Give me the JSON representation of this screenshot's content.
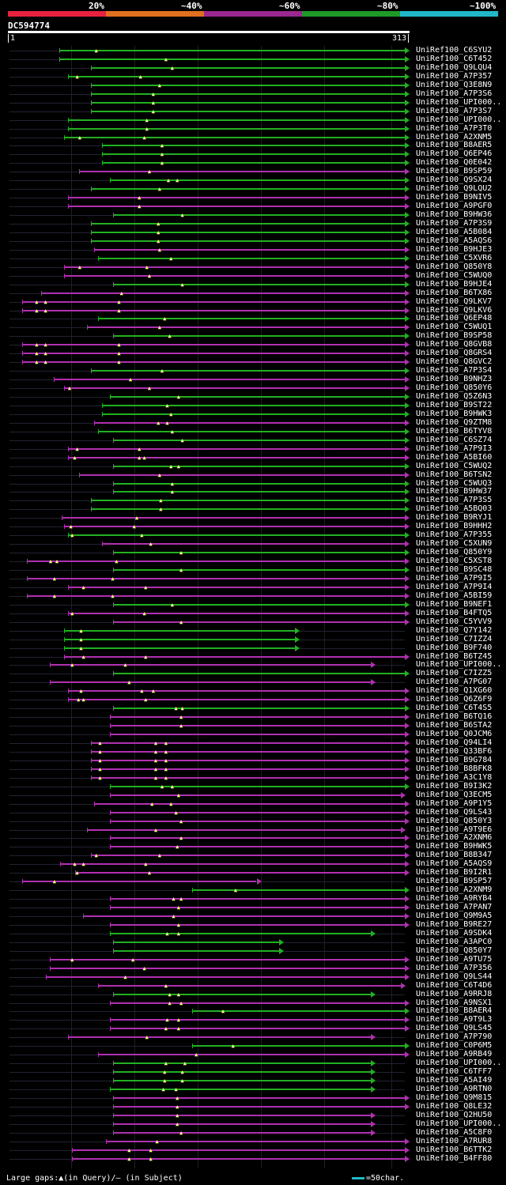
{
  "legend": {
    "labels": [
      "20%",
      "~40%",
      "~60%",
      "~80%",
      "~100%"
    ],
    "colors": [
      "#e8213f",
      "#e07020",
      "#9a2890",
      "#1e9a28",
      "#20b8c8"
    ]
  },
  "query": {
    "id": "DC594774",
    "start": "1",
    "end": "313"
  },
  "hits": [
    {
      "name": "UniRef100_C6SYU2",
      "start": 40,
      "end": 313,
      "color": "green",
      "gaps": [
        70
      ]
    },
    {
      "name": "UniRef100_C6T452",
      "start": 40,
      "end": 313,
      "color": "green",
      "gaps": [
        125
      ]
    },
    {
      "name": "UniRef100_Q9LQU4",
      "start": 65,
      "end": 313,
      "color": "green",
      "gaps": [
        130
      ]
    },
    {
      "name": "UniRef100_A7P357",
      "start": 47,
      "end": 313,
      "color": "green",
      "gaps": [
        55,
        105
      ]
    },
    {
      "name": "UniRef100_Q3E8N9",
      "start": 65,
      "end": 313,
      "color": "green",
      "gaps": [
        120
      ]
    },
    {
      "name": "UniRef100_A7P3S6",
      "start": 65,
      "end": 313,
      "color": "green",
      "gaps": [
        115
      ]
    },
    {
      "name": "UniRef100_UPI000..",
      "start": 65,
      "end": 313,
      "color": "green",
      "gaps": [
        115
      ]
    },
    {
      "name": "UniRef100_A7P3S7",
      "start": 65,
      "end": 313,
      "color": "green",
      "gaps": [
        115
      ]
    },
    {
      "name": "UniRef100_UPI000..",
      "start": 47,
      "end": 313,
      "color": "green",
      "gaps": [
        110
      ]
    },
    {
      "name": "UniRef100_A7P3T0",
      "start": 47,
      "end": 313,
      "color": "green",
      "gaps": [
        110
      ]
    },
    {
      "name": "UniRef100_A2XNM5",
      "start": 44,
      "end": 313,
      "color": "green",
      "gaps": [
        57,
        108
      ]
    },
    {
      "name": "UniRef100_B8AER5",
      "start": 74,
      "end": 313,
      "color": "green",
      "gaps": [
        122
      ]
    },
    {
      "name": "UniRef100_Q6EP46",
      "start": 74,
      "end": 313,
      "color": "green",
      "gaps": [
        122
      ]
    },
    {
      "name": "UniRef100_Q0E042",
      "start": 74,
      "end": 313,
      "color": "green",
      "gaps": [
        122
      ]
    },
    {
      "name": "UniRef100_B9SP59",
      "start": 56,
      "end": 313,
      "color": "magenta",
      "gaps": [
        112
      ]
    },
    {
      "name": "UniRef100_Q9SX24",
      "start": 80,
      "end": 313,
      "color": "green",
      "gaps": [
        127,
        134
      ]
    },
    {
      "name": "UniRef100_Q9LQU2",
      "start": 65,
      "end": 313,
      "color": "green",
      "gaps": [
        120
      ]
    },
    {
      "name": "UniRef100_B9NIV5",
      "start": 47,
      "end": 313,
      "color": "magenta",
      "gaps": [
        104
      ]
    },
    {
      "name": "UniRef100_A9PGF0",
      "start": 47,
      "end": 313,
      "color": "magenta",
      "gaps": [
        104
      ]
    },
    {
      "name": "UniRef100_B9HW36",
      "start": 83,
      "end": 313,
      "color": "green",
      "gaps": [
        138
      ]
    },
    {
      "name": "UniRef100_A7P3S9",
      "start": 65,
      "end": 313,
      "color": "green",
      "gaps": [
        119
      ]
    },
    {
      "name": "UniRef100_A5B084",
      "start": 65,
      "end": 313,
      "color": "green",
      "gaps": [
        119
      ]
    },
    {
      "name": "UniRef100_A5AQS6",
      "start": 65,
      "end": 313,
      "color": "green",
      "gaps": [
        119
      ]
    },
    {
      "name": "UniRef100_B9HJE3",
      "start": 68,
      "end": 313,
      "color": "magenta",
      "gaps": [
        120
      ]
    },
    {
      "name": "UniRef100_C5XVR6",
      "start": 71,
      "end": 313,
      "color": "green",
      "gaps": [
        129
      ]
    },
    {
      "name": "UniRef100_Q850Y8",
      "start": 44,
      "end": 313,
      "color": "magenta",
      "gaps": [
        57,
        110
      ]
    },
    {
      "name": "UniRef100_C5WUQ0",
      "start": 44,
      "end": 313,
      "color": "magenta",
      "gaps": [
        112
      ]
    },
    {
      "name": "UniRef100_B9HJE4",
      "start": 83,
      "end": 313,
      "color": "green",
      "gaps": [
        138
      ]
    },
    {
      "name": "UniRef100_B6TX86",
      "start": 26,
      "end": 313,
      "color": "magenta",
      "gaps": [
        90
      ]
    },
    {
      "name": "UniRef100_Q9LKV7",
      "start": 11,
      "end": 313,
      "color": "magenta",
      "gaps": [
        23,
        30,
        88
      ]
    },
    {
      "name": "UniRef100_Q9LKV6",
      "start": 11,
      "end": 313,
      "color": "magenta",
      "gaps": [
        23,
        30,
        88
      ]
    },
    {
      "name": "UniRef100_Q6EP48",
      "start": 71,
      "end": 313,
      "color": "green",
      "gaps": [
        124
      ]
    },
    {
      "name": "UniRef100_C5WUQ1",
      "start": 62,
      "end": 313,
      "color": "magenta",
      "gaps": [
        120
      ]
    },
    {
      "name": "UniRef100_B9SP58",
      "start": 83,
      "end": 313,
      "color": "green",
      "gaps": [
        128
      ]
    },
    {
      "name": "UniRef100_Q8GVB8",
      "start": 11,
      "end": 313,
      "color": "magenta",
      "gaps": [
        23,
        30,
        88
      ]
    },
    {
      "name": "UniRef100_Q8GRS4",
      "start": 11,
      "end": 313,
      "color": "magenta",
      "gaps": [
        23,
        30,
        88
      ]
    },
    {
      "name": "UniRef100_Q8GVC2",
      "start": 11,
      "end": 313,
      "color": "magenta",
      "gaps": [
        23,
        30,
        88
      ]
    },
    {
      "name": "UniRef100_A7P3S4",
      "start": 65,
      "end": 313,
      "color": "green",
      "gaps": [
        122
      ]
    },
    {
      "name": "UniRef100_B9NHZ3",
      "start": 36,
      "end": 313,
      "color": "magenta",
      "gaps": [
        97
      ]
    },
    {
      "name": "UniRef100_Q850Y6",
      "start": 44,
      "end": 313,
      "color": "magenta",
      "gaps": [
        49,
        112
      ]
    },
    {
      "name": "UniRef100_Q5Z6N3",
      "start": 80,
      "end": 313,
      "color": "green",
      "gaps": [
        135
      ]
    },
    {
      "name": "UniRef100_B9ST22",
      "start": 74,
      "end": 313,
      "color": "green",
      "gaps": [
        126
      ]
    },
    {
      "name": "UniRef100_B9HWK3",
      "start": 74,
      "end": 313,
      "color": "green",
      "gaps": [
        129
      ]
    },
    {
      "name": "UniRef100_Q9ZTM8",
      "start": 68,
      "end": 313,
      "color": "magenta",
      "gaps": [
        119,
        126
      ]
    },
    {
      "name": "UniRef100_B6TYV8",
      "start": 71,
      "end": 313,
      "color": "green",
      "gaps": [
        130
      ]
    },
    {
      "name": "UniRef100_C6SZ74",
      "start": 83,
      "end": 313,
      "color": "green",
      "gaps": [
        138
      ]
    },
    {
      "name": "UniRef100_A7P9I3",
      "start": 47,
      "end": 313,
      "color": "magenta",
      "gaps": [
        55,
        104
      ]
    },
    {
      "name": "UniRef100_A5BI60",
      "start": 47,
      "end": 313,
      "color": "magenta",
      "gaps": [
        53,
        104,
        108
      ]
    },
    {
      "name": "UniRef100_C5WUQ2",
      "start": 83,
      "end": 313,
      "color": "green",
      "gaps": [
        129,
        135
      ]
    },
    {
      "name": "UniRef100_B6TSN2",
      "start": 56,
      "end": 313,
      "color": "magenta",
      "gaps": [
        120
      ]
    },
    {
      "name": "UniRef100_C5WUQ3",
      "start": 83,
      "end": 313,
      "color": "green",
      "gaps": [
        130
      ]
    },
    {
      "name": "UniRef100_B9HW37",
      "start": 83,
      "end": 313,
      "color": "green",
      "gaps": [
        130
      ]
    },
    {
      "name": "UniRef100_A7P3S5",
      "start": 65,
      "end": 313,
      "color": "green",
      "gaps": [
        121
      ]
    },
    {
      "name": "UniRef100_A5BQ03",
      "start": 65,
      "end": 313,
      "color": "green",
      "gaps": [
        121
      ]
    },
    {
      "name": "UniRef100_B9RYJ1",
      "start": 42,
      "end": 313,
      "color": "magenta",
      "gaps": [
        102
      ]
    },
    {
      "name": "UniRef100_B9HHH2",
      "start": 44,
      "end": 313,
      "color": "magenta",
      "gaps": [
        50,
        100
      ]
    },
    {
      "name": "UniRef100_A7P355",
      "start": 47,
      "end": 313,
      "color": "green",
      "gaps": [
        51,
        106
      ]
    },
    {
      "name": "UniRef100_C5XUN9",
      "start": 74,
      "end": 313,
      "color": "magenta",
      "gaps": [
        113
      ]
    },
    {
      "name": "UniRef100_Q850Y9",
      "start": 83,
      "end": 313,
      "color": "green",
      "gaps": [
        137
      ]
    },
    {
      "name": "UniRef100_C5XST8",
      "start": 15,
      "end": 313,
      "color": "magenta",
      "gaps": [
        34,
        39,
        86
      ]
    },
    {
      "name": "UniRef100_B9SC48",
      "start": 83,
      "end": 313,
      "color": "green",
      "gaps": [
        137
      ]
    },
    {
      "name": "UniRef100_A7P9I5",
      "start": 15,
      "end": 313,
      "color": "magenta",
      "gaps": [
        37,
        83
      ]
    },
    {
      "name": "UniRef100_A7P9I4",
      "start": 47,
      "end": 313,
      "color": "magenta",
      "gaps": [
        60,
        109
      ]
    },
    {
      "name": "UniRef100_A5BI59",
      "start": 15,
      "end": 313,
      "color": "magenta",
      "gaps": [
        37,
        83
      ]
    },
    {
      "name": "UniRef100_B9NEF1",
      "start": 83,
      "end": 313,
      "color": "green",
      "gaps": [
        130
      ]
    },
    {
      "name": "UniRef100_B4FTQ5",
      "start": 47,
      "end": 313,
      "color": "magenta",
      "gaps": [
        51,
        108
      ]
    },
    {
      "name": "UniRef100_C5YVV9",
      "start": 83,
      "end": 313,
      "color": "magenta",
      "gaps": [
        137
      ]
    },
    {
      "name": "UniRef100_Q7Y142",
      "start": 44,
      "end": 226,
      "color": "green",
      "gaps": [
        58
      ]
    },
    {
      "name": "UniRef100_C7IZZ4",
      "start": 44,
      "end": 226,
      "color": "green",
      "gaps": [
        58
      ]
    },
    {
      "name": "UniRef100_B9F740",
      "start": 44,
      "end": 226,
      "color": "green",
      "gaps": [
        58
      ]
    },
    {
      "name": "UniRef100_B6TZ45",
      "start": 44,
      "end": 313,
      "color": "magenta",
      "gaps": [
        60,
        109
      ]
    },
    {
      "name": "UniRef100_UPI000..",
      "start": 33,
      "end": 286,
      "color": "magenta",
      "gaps": [
        51,
        93
      ]
    },
    {
      "name": "UniRef100_C7IZZ5",
      "start": 83,
      "end": 313,
      "color": "green",
      "gaps": []
    },
    {
      "name": "UniRef100_A7PG07",
      "start": 33,
      "end": 286,
      "color": "magenta",
      "gaps": [
        96
      ]
    },
    {
      "name": "UniRef100_Q1XG60",
      "start": 47,
      "end": 313,
      "color": "magenta",
      "gaps": [
        58,
        106,
        115
      ]
    },
    {
      "name": "UniRef100_Q6Z6F9",
      "start": 47,
      "end": 313,
      "color": "magenta",
      "gaps": [
        56,
        60,
        109
      ]
    },
    {
      "name": "UniRef100_C6T4S5",
      "start": 83,
      "end": 313,
      "color": "green",
      "gaps": [
        133,
        138
      ]
    },
    {
      "name": "UniRef100_B6TQ16",
      "start": 80,
      "end": 313,
      "color": "magenta",
      "gaps": [
        137
      ]
    },
    {
      "name": "UniRef100_B6STA2",
      "start": 80,
      "end": 313,
      "color": "magenta",
      "gaps": [
        137
      ]
    },
    {
      "name": "UniRef100_Q0JCM6",
      "start": 80,
      "end": 313,
      "color": "magenta",
      "gaps": []
    },
    {
      "name": "UniRef100_Q94LI4",
      "start": 65,
      "end": 313,
      "color": "magenta",
      "gaps": [
        73,
        117,
        125
      ]
    },
    {
      "name": "UniRef100_Q33BF6",
      "start": 65,
      "end": 313,
      "color": "magenta",
      "gaps": [
        73,
        117,
        125
      ]
    },
    {
      "name": "UniRef100_B9G784",
      "start": 65,
      "end": 313,
      "color": "magenta",
      "gaps": [
        73,
        117,
        125
      ]
    },
    {
      "name": "UniRef100_B8BFK8",
      "start": 65,
      "end": 313,
      "color": "magenta",
      "gaps": [
        73,
        117,
        125
      ]
    },
    {
      "name": "UniRef100_A3C1Y8",
      "start": 65,
      "end": 313,
      "color": "magenta",
      "gaps": [
        73,
        117,
        125
      ]
    },
    {
      "name": "UniRef100_B9I3K2",
      "start": 80,
      "end": 313,
      "color": "green",
      "gaps": [
        122,
        130
      ]
    },
    {
      "name": "UniRef100_Q3ECM5",
      "start": 80,
      "end": 310,
      "color": "magenta",
      "gaps": [
        135
      ]
    },
    {
      "name": "UniRef100_A9P1Y5",
      "start": 68,
      "end": 313,
      "color": "magenta",
      "gaps": [
        114,
        129
      ]
    },
    {
      "name": "UniRef100_Q9LS43",
      "start": 80,
      "end": 313,
      "color": "magenta",
      "gaps": [
        133
      ]
    },
    {
      "name": "UniRef100_Q850Y3",
      "start": 80,
      "end": 313,
      "color": "magenta",
      "gaps": [
        137
      ]
    },
    {
      "name": "UniRef100_A9T9E6",
      "start": 62,
      "end": 310,
      "color": "magenta",
      "gaps": [
        117
      ]
    },
    {
      "name": "UniRef100_A2XNM6",
      "start": 80,
      "end": 313,
      "color": "magenta",
      "gaps": [
        137
      ]
    },
    {
      "name": "UniRef100_B9HWK5",
      "start": 80,
      "end": 313,
      "color": "magenta",
      "gaps": [
        134
      ]
    },
    {
      "name": "UniRef100_B8B347",
      "start": 65,
      "end": 313,
      "color": "magenta",
      "gaps": [
        70,
        120
      ]
    },
    {
      "name": "UniRef100_A5AQS9",
      "start": 41,
      "end": 313,
      "color": "magenta",
      "gaps": [
        53,
        60,
        109
      ]
    },
    {
      "name": "UniRef100_B9I2R1",
      "start": 53,
      "end": 313,
      "color": "magenta",
      "gaps": [
        55,
        112
      ]
    },
    {
      "name": "UniRef100_B9SP57",
      "start": 11,
      "end": 196,
      "color": "magenta",
      "gaps": [
        37
      ]
    },
    {
      "name": "UniRef100_A2XNM9",
      "start": 145,
      "end": 313,
      "color": "green",
      "gaps": [
        180
      ]
    },
    {
      "name": "UniRef100_A9RYB4",
      "start": 80,
      "end": 313,
      "color": "magenta",
      "gaps": [
        131,
        137
      ]
    },
    {
      "name": "UniRef100_A7PAN7",
      "start": 80,
      "end": 313,
      "color": "magenta",
      "gaps": [
        135
      ]
    },
    {
      "name": "UniRef100_Q9M9A5",
      "start": 59,
      "end": 313,
      "color": "magenta",
      "gaps": [
        131
      ]
    },
    {
      "name": "UniRef100_B9RE27",
      "start": 80,
      "end": 313,
      "color": "magenta",
      "gaps": [
        135
      ]
    },
    {
      "name": "UniRef100_A9SDK4",
      "start": 80,
      "end": 286,
      "color": "green",
      "gaps": [
        126,
        135
      ]
    },
    {
      "name": "UniRef100_A3APC0",
      "start": 83,
      "end": 214,
      "color": "green",
      "gaps": []
    },
    {
      "name": "UniRef100_Q850Y7",
      "start": 83,
      "end": 214,
      "color": "green",
      "gaps": []
    },
    {
      "name": "UniRef100_A9TU75",
      "start": 33,
      "end": 313,
      "color": "magenta",
      "gaps": [
        51,
        99
      ]
    },
    {
      "name": "UniRef100_A7P356",
      "start": 33,
      "end": 313,
      "color": "magenta",
      "gaps": [
        108
      ]
    },
    {
      "name": "UniRef100_Q9LS44",
      "start": 30,
      "end": 313,
      "color": "magenta",
      "gaps": [
        93
      ]
    },
    {
      "name": "UniRef100_C6T4D6",
      "start": 71,
      "end": 310,
      "color": "magenta",
      "gaps": [
        125
      ]
    },
    {
      "name": "UniRef100_A9RRJ8",
      "start": 83,
      "end": 286,
      "color": "green",
      "gaps": [
        128,
        135
      ]
    },
    {
      "name": "UniRef100_A9NSX1",
      "start": 80,
      "end": 313,
      "color": "magenta",
      "gaps": [
        128,
        137
      ]
    },
    {
      "name": "UniRef100_B8AER4",
      "start": 145,
      "end": 313,
      "color": "green",
      "gaps": [
        170
      ]
    },
    {
      "name": "UniRef100_A9T9L3",
      "start": 80,
      "end": 313,
      "color": "magenta",
      "gaps": [
        126,
        135
      ]
    },
    {
      "name": "UniRef100_Q9LS45",
      "start": 80,
      "end": 313,
      "color": "magenta",
      "gaps": [
        125,
        135
      ]
    },
    {
      "name": "UniRef100_A7P790",
      "start": 47,
      "end": 286,
      "color": "magenta",
      "gaps": [
        110
      ]
    },
    {
      "name": "UniRef100_C0P6M5",
      "start": 145,
      "end": 313,
      "color": "green",
      "gaps": [
        178
      ]
    },
    {
      "name": "UniRef100_A9RB49",
      "start": 71,
      "end": 313,
      "color": "magenta",
      "gaps": [
        149
      ]
    },
    {
      "name": "UniRef100_UPI000..",
      "start": 83,
      "end": 286,
      "color": "green",
      "gaps": [
        125,
        140
      ]
    },
    {
      "name": "UniRef100_C6TFF7",
      "start": 83,
      "end": 286,
      "color": "green",
      "gaps": [
        124,
        138
      ]
    },
    {
      "name": "UniRef100_A5AI49",
      "start": 83,
      "end": 286,
      "color": "green",
      "gaps": [
        124,
        138
      ]
    },
    {
      "name": "UniRef100_A9RTN0",
      "start": 80,
      "end": 286,
      "color": "green",
      "gaps": [
        123,
        133
      ]
    },
    {
      "name": "UniRef100_Q9M815",
      "start": 83,
      "end": 313,
      "color": "magenta",
      "gaps": [
        134
      ]
    },
    {
      "name": "UniRef100_Q8LE32",
      "start": 83,
      "end": 313,
      "color": "magenta",
      "gaps": [
        134
      ]
    },
    {
      "name": "UniRef100_Q2HU50",
      "start": 83,
      "end": 286,
      "color": "magenta",
      "gaps": [
        134
      ]
    },
    {
      "name": "UniRef100_UPI000..",
      "start": 83,
      "end": 286,
      "color": "magenta",
      "gaps": [
        134
      ]
    },
    {
      "name": "UniRef100_A5C8F0",
      "start": 83,
      "end": 286,
      "color": "magenta",
      "gaps": [
        137
      ]
    },
    {
      "name": "UniRef100_A7RUR8",
      "start": 77,
      "end": 313,
      "color": "magenta",
      "gaps": [
        118
      ]
    },
    {
      "name": "UniRef100_B6TTK2",
      "start": 50,
      "end": 313,
      "color": "magenta",
      "gaps": [
        96,
        113
      ]
    },
    {
      "name": "UniRef100_B4FF80",
      "start": 50,
      "end": 313,
      "color": "magenta",
      "gaps": [
        96,
        113
      ]
    }
  ],
  "footer": {
    "gaps_text": "Large gaps:▲(in Query)/– (in Subject)",
    "scale_text": "=50char."
  }
}
